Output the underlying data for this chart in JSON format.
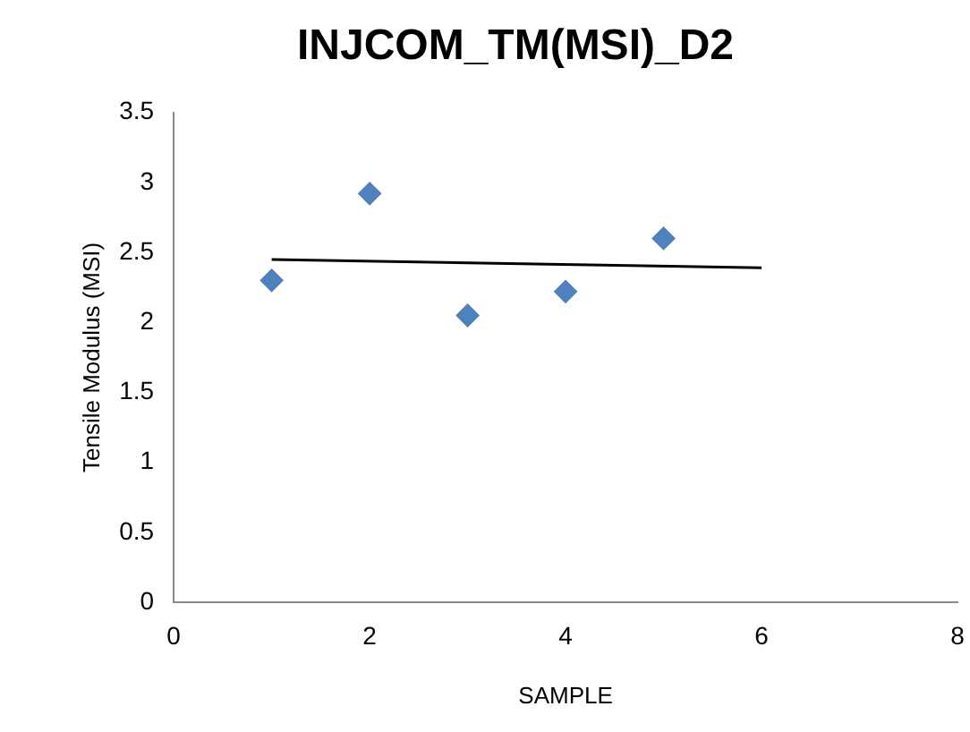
{
  "chart_data": {
    "type": "scatter",
    "title": "INJCOM_TM(MSI)_D2",
    "xlabel": "SAMPLE",
    "ylabel": "Tensile Modulus (MSI)",
    "x": [
      1,
      2,
      3,
      4,
      5
    ],
    "marker": "diamond",
    "grid": false,
    "legend": false,
    "series": [
      {
        "color": "#4f81bd",
        "values": [
          2.3,
          2.92,
          2.05,
          2.22,
          2.6
        ]
      },
      {
        "type": "line",
        "color": "#000000",
        "x": [
          1,
          6
        ],
        "values": [
          2.45,
          2.39
        ],
        "marker": "none",
        "line_style": "solid"
      }
    ],
    "xlim": [
      0,
      8
    ],
    "xticks": [
      0,
      2,
      4,
      6,
      8
    ],
    "ylim": [
      0,
      3.5
    ],
    "yticks": [
      0,
      0.5,
      1,
      1.5,
      2,
      2.5,
      3,
      3.5
    ]
  }
}
